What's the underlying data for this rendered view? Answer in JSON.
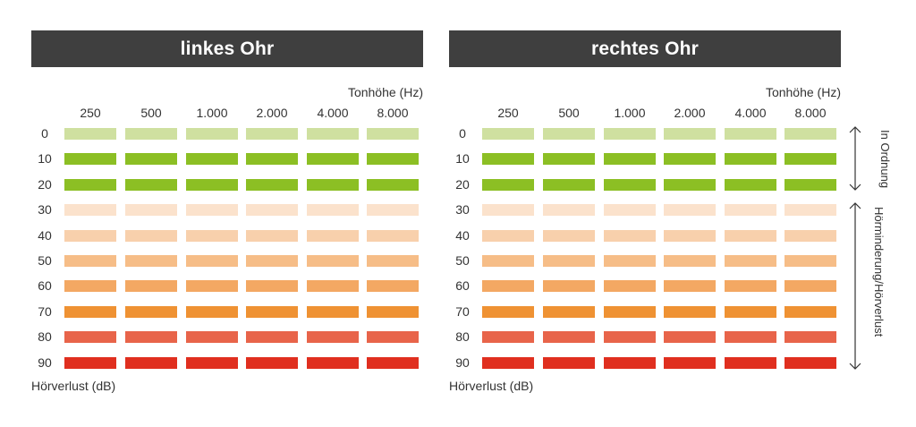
{
  "chart_data": [
    {
      "type": "heatmap",
      "title": "linkes Ohr",
      "xlabel": "Tonhöhe (Hz)",
      "ylabel": "Hörverlust (dB)",
      "x_categories": [
        "250",
        "500",
        "1.000",
        "2.000",
        "4.000",
        "8.000"
      ],
      "y_categories": [
        "0",
        "10",
        "20",
        "30",
        "40",
        "50",
        "60",
        "70",
        "80",
        "90"
      ],
      "row_colors": [
        "#cfe0a0",
        "#8cbf24",
        "#8cbf24",
        "#fbe2cc",
        "#f8d0ac",
        "#f6bd87",
        "#f3a863",
        "#ef9233",
        "#e8644a",
        "#e02f1f"
      ]
    },
    {
      "type": "heatmap",
      "title": "rechtes Ohr",
      "xlabel": "Tonhöhe (Hz)",
      "ylabel": "Hörverlust (dB)",
      "x_categories": [
        "250",
        "500",
        "1.000",
        "2.000",
        "4.000",
        "8.000"
      ],
      "y_categories": [
        "0",
        "10",
        "20",
        "30",
        "40",
        "50",
        "60",
        "70",
        "80",
        "90"
      ],
      "row_colors": [
        "#cfe0a0",
        "#8cbf24",
        "#8cbf24",
        "#fbe2cc",
        "#f8d0ac",
        "#f6bd87",
        "#f3a863",
        "#ef9233",
        "#e8644a",
        "#e02f1f"
      ]
    }
  ],
  "legend": {
    "normal_label": "In Ordnung",
    "loss_label": "Hörminderung/Hörverlust"
  }
}
